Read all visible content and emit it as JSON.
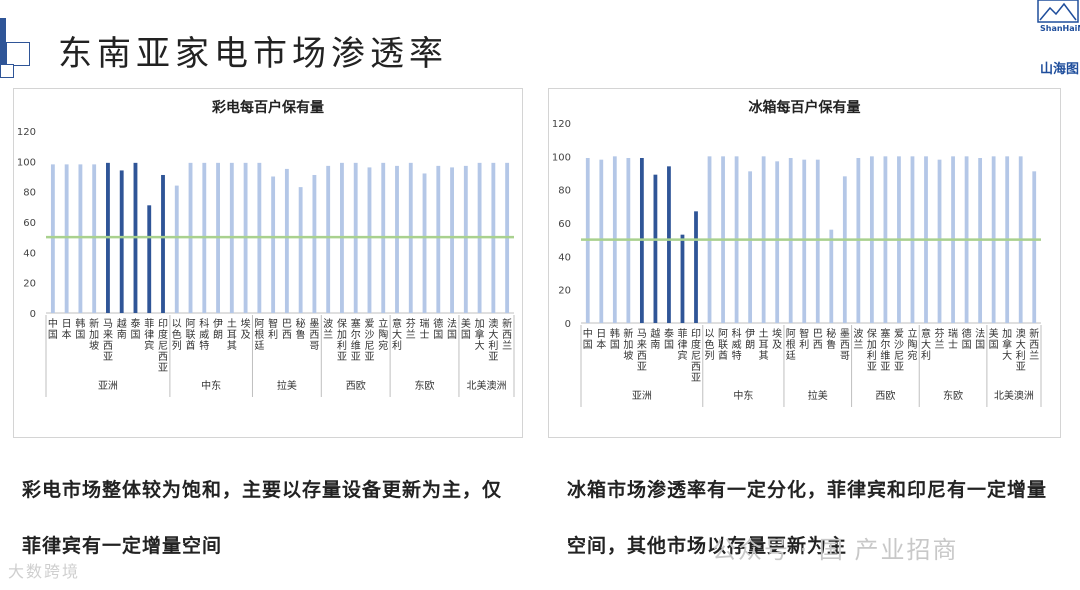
{
  "page": {
    "title": "东南亚家电市场渗透率",
    "logo_text": "ShanHaiM",
    "logo_cn": "山海图",
    "caption_left": "彩电市场整体较为饱和，主要以存量设备更新为主，仅菲律宾有一定增量空间",
    "caption_right": "冰箱市场渗透率有一定分化，菲律宾和印尼有一定增量空间，其他市场以存量更新为主",
    "watermark_right": "公众号 · 国 产业招商",
    "watermark_left": "大数跨境"
  },
  "colors": {
    "bar_light": "#b4c7e7",
    "bar_dark": "#2f5597",
    "reference_line": "#a9d18e",
    "axis": "#bfbfbf"
  },
  "chart_data": [
    {
      "type": "bar",
      "title": "彩电每百户保有量",
      "ylim": [
        0,
        120
      ],
      "yticks": [
        0,
        20,
        40,
        60,
        80,
        100,
        120
      ],
      "reference_line": 50,
      "categories": [
        "中国",
        "日本",
        "韩国",
        "新加坡",
        "马来西亚",
        "越南",
        "泰国",
        "菲律宾",
        "印度尼西亚",
        "以色列",
        "阿联酋",
        "科威特",
        "伊朗",
        "土耳其",
        "埃及",
        "阿根廷",
        "智利",
        "巴西",
        "秘鲁",
        "墨西哥",
        "波兰",
        "保加利亚",
        "塞尔维亚",
        "爱沙尼亚",
        "立陶宛",
        "意大利",
        "芬兰",
        "瑞士",
        "德国",
        "法国",
        "美国",
        "加拿大",
        "澳大利亚",
        "新西兰"
      ],
      "values": [
        98,
        98,
        98,
        98,
        99,
        94,
        99,
        71,
        91,
        84,
        99,
        99,
        99,
        99,
        99,
        99,
        90,
        95,
        83,
        91,
        97,
        99,
        99,
        96,
        99,
        97,
        99,
        92,
        97,
        96,
        97,
        99,
        99,
        99
      ],
      "highlight": [
        "马来西亚",
        "越南",
        "泰国",
        "菲律宾",
        "印度尼西亚"
      ],
      "groups": [
        {
          "name": "亚洲",
          "count": 9
        },
        {
          "name": "中东",
          "count": 6
        },
        {
          "name": "拉美",
          "count": 5
        },
        {
          "name": "西欧",
          "count": 5
        },
        {
          "name": "东欧",
          "count": 5
        },
        {
          "name": "北美澳洲",
          "count": 4
        }
      ]
    },
    {
      "type": "bar",
      "title": "冰箱每百户保有量",
      "ylim": [
        0,
        120
      ],
      "yticks": [
        0,
        20,
        40,
        60,
        80,
        100,
        120
      ],
      "reference_line": 50,
      "categories": [
        "中国",
        "日本",
        "韩国",
        "新加坡",
        "马来西亚",
        "越南",
        "泰国",
        "菲律宾",
        "印度尼西亚",
        "以色列",
        "阿联酋",
        "科威特",
        "伊朗",
        "土耳其",
        "埃及",
        "阿根廷",
        "智利",
        "巴西",
        "秘鲁",
        "墨西哥",
        "波兰",
        "保加利亚",
        "塞尔维亚",
        "爱沙尼亚",
        "立陶宛",
        "意大利",
        "芬兰",
        "瑞士",
        "德国",
        "法国",
        "美国",
        "加拿大",
        "澳大利亚",
        "新西兰"
      ],
      "values": [
        99,
        98,
        100,
        99,
        99,
        89,
        94,
        53,
        67,
        100,
        100,
        100,
        91,
        100,
        97,
        99,
        98,
        98,
        56,
        88,
        99,
        100,
        100,
        100,
        100,
        100,
        98,
        100,
        100,
        99,
        100,
        100,
        100,
        91
      ],
      "highlight": [
        "马来西亚",
        "越南",
        "泰国",
        "菲律宾",
        "印度尼西亚"
      ],
      "groups": [
        {
          "name": "亚洲",
          "count": 9
        },
        {
          "name": "中东",
          "count": 6
        },
        {
          "name": "拉美",
          "count": 5
        },
        {
          "name": "西欧",
          "count": 5
        },
        {
          "name": "东欧",
          "count": 5
        },
        {
          "name": "北美澳洲",
          "count": 4
        }
      ]
    }
  ]
}
